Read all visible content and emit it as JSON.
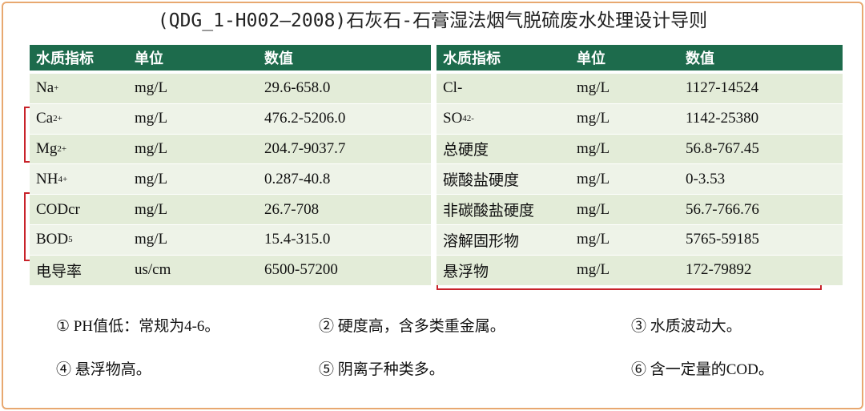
{
  "header": {
    "title": "(QDG_1-H002—2008)石灰石-石膏湿法烟气脱硫废水处理设计导则"
  },
  "table": {
    "columns": [
      "水质指标",
      "单位",
      "数值",
      "水质指标",
      "单位",
      "数值"
    ],
    "rows": [
      [
        {
          "text": "Na",
          "sup": "+"
        },
        "mg/L",
        "29.6-658.0",
        "Cl-",
        "mg/L",
        "1127-14524"
      ],
      [
        {
          "text": "Ca",
          "sup": "2+"
        },
        "mg/L",
        "476.2-5206.0",
        {
          "text": "SO",
          "sub": "4",
          "sup": "2-"
        },
        "mg/L",
        "1142-25380"
      ],
      [
        {
          "text": "Mg",
          "sup": "2+"
        },
        "mg/L",
        "204.7-9037.7",
        "总硬度",
        "mg/L",
        "56.8-767.45"
      ],
      [
        {
          "text": "NH",
          "sup": "4+"
        },
        "mg/L",
        "0.287-40.8",
        "碳酸盐硬度",
        "mg/L",
        "0-3.53"
      ],
      [
        "CODcr",
        "mg/L",
        "26.7-708",
        "非碳酸盐硬度",
        "mg/L",
        "56.7-766.76"
      ],
      [
        {
          "text": "BOD",
          "sub": "5"
        },
        "mg/L",
        "15.4-315.0",
        "溶解固形物",
        "mg/L",
        "5765-59185"
      ],
      [
        "电导率",
        "us/cm",
        "6500-57200",
        "悬浮物",
        "mg/L",
        "172-79892"
      ]
    ]
  },
  "notes": [
    "① PH值低：常规为4-6。",
    "② 硬度高，含多类重金属。",
    "③ 水质波动大。",
    "④ 悬浮物高。",
    "⑤ 阴离子种类多。",
    "⑥ 含一定量的COD。"
  ]
}
